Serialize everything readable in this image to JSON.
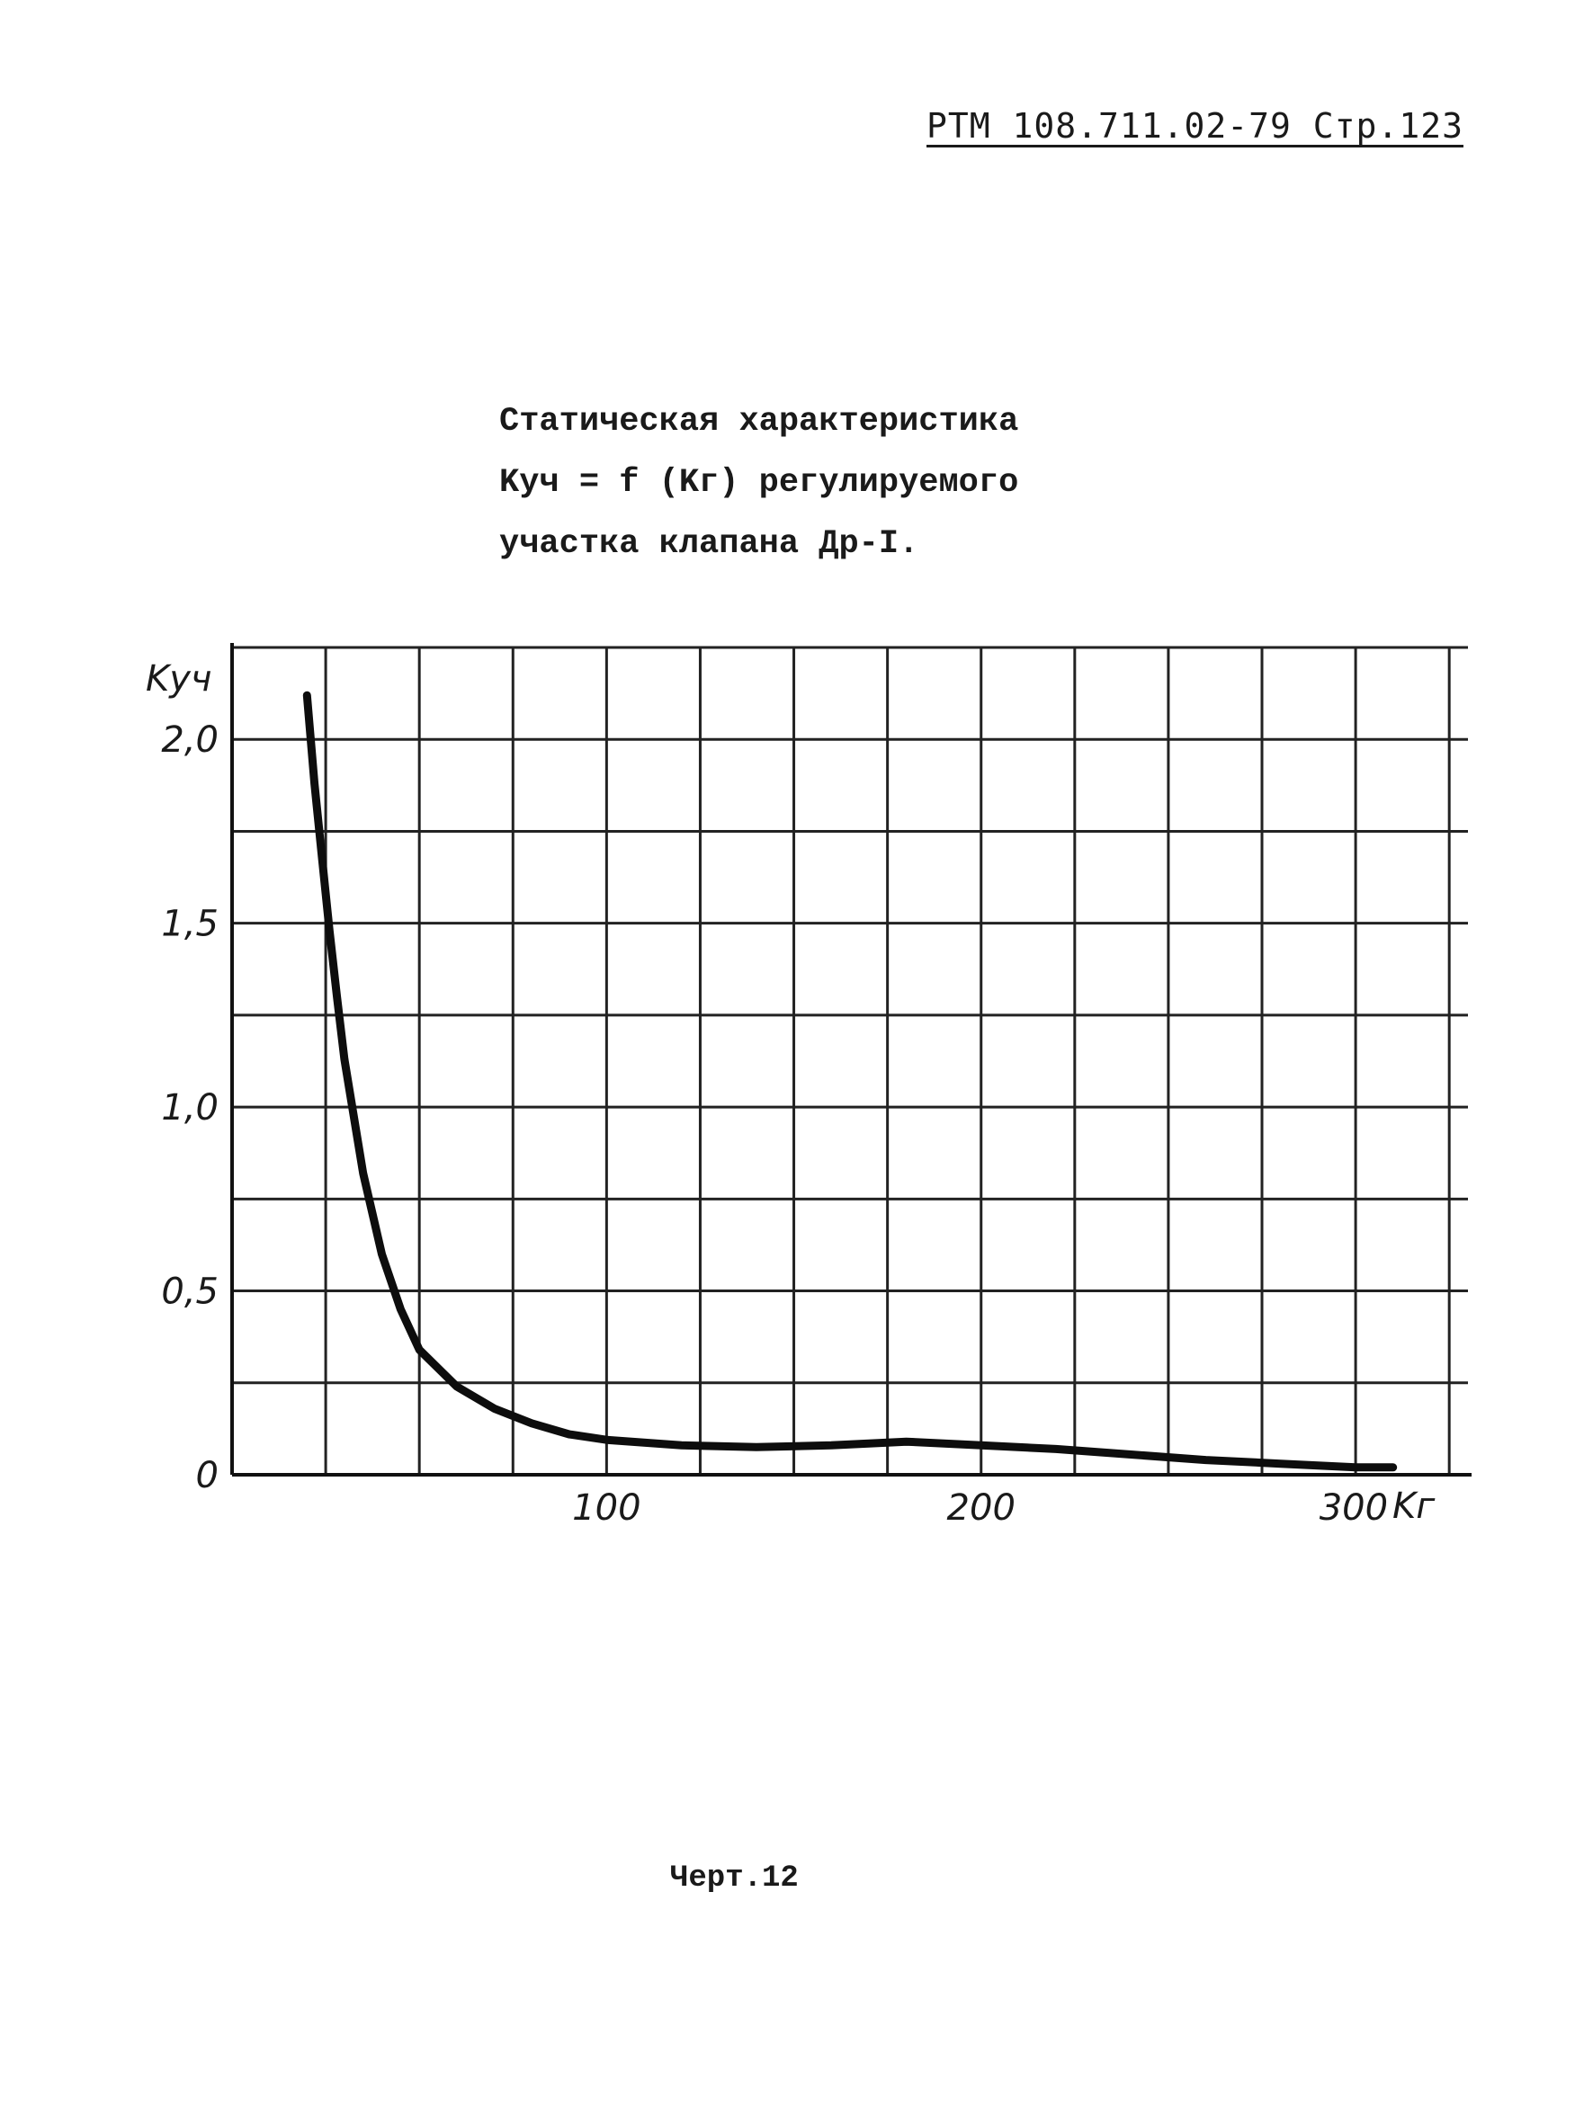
{
  "page": {
    "header": "РТМ 108.711.02-79 Стр.123",
    "caption_lines": [
      "Статическая характеристика",
      "Kуч = f (Kг) регулируемого",
      "участка клапана Др-I."
    ],
    "footer": "Черт.12"
  },
  "chart_data": {
    "type": "line",
    "title": "",
    "xlabel": "Kг",
    "ylabel": "Kуч",
    "xlim": [
      0,
      330
    ],
    "ylim": [
      0,
      2.25
    ],
    "x_ticks": [
      {
        "value": 100,
        "label": "100"
      },
      {
        "value": 200,
        "label": "200"
      },
      {
        "value": 300,
        "label": "300"
      }
    ],
    "y_ticks": [
      {
        "value": 0,
        "label": "0"
      },
      {
        "value": 0.5,
        "label": "0,5"
      },
      {
        "value": 1.0,
        "label": "1,0"
      },
      {
        "value": 1.5,
        "label": "1,5"
      },
      {
        "value": 2.0,
        "label": "2,0"
      }
    ],
    "grid": true,
    "series": [
      {
        "x": [
          20,
          22,
          24,
          26,
          28,
          30,
          35,
          40,
          45,
          50,
          60,
          70,
          80,
          90,
          100,
          120,
          140,
          160,
          180,
          200,
          220,
          240,
          260,
          280,
          300,
          310
        ],
        "y": [
          2.12,
          1.88,
          1.68,
          1.48,
          1.3,
          1.13,
          0.82,
          0.6,
          0.45,
          0.34,
          0.24,
          0.18,
          0.14,
          0.11,
          0.095,
          0.08,
          0.075,
          0.08,
          0.09,
          0.08,
          0.07,
          0.055,
          0.04,
          0.03,
          0.02,
          0.02
        ]
      }
    ]
  }
}
